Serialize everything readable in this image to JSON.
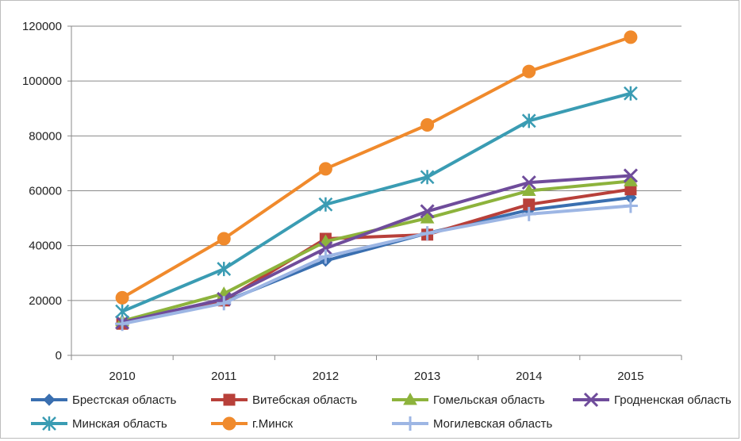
{
  "chart_data": {
    "type": "line",
    "categories": [
      "2010",
      "2011",
      "2012",
      "2013",
      "2014",
      "2015"
    ],
    "ylim": [
      0,
      120000
    ],
    "yticks": [
      "0",
      "20000",
      "40000",
      "60000",
      "80000",
      "100000",
      "120000"
    ],
    "grid": true,
    "legend_position": "bottom",
    "series": [
      {
        "name": "Брестская область",
        "color": "#3a6fb0",
        "marker": "diamond",
        "values": [
          12000,
          19500,
          34500,
          44500,
          53000,
          57500
        ]
      },
      {
        "name": "Витебская область",
        "color": "#b8403a",
        "marker": "square",
        "values": [
          11500,
          20000,
          42500,
          44000,
          55000,
          60500
        ]
      },
      {
        "name": "Гомельская область",
        "color": "#8db33c",
        "marker": "triangle",
        "values": [
          12500,
          22500,
          41500,
          50000,
          60000,
          63500
        ]
      },
      {
        "name": "Гродненская область",
        "color": "#6f4c9b",
        "marker": "x",
        "values": [
          12000,
          20500,
          39000,
          52500,
          63000,
          65500
        ]
      },
      {
        "name": "Минская область",
        "color": "#3a9cb3",
        "marker": "asterisk",
        "values": [
          16000,
          31500,
          55000,
          65000,
          85500,
          95500
        ]
      },
      {
        "name": "г.Минск",
        "color": "#f08a2c",
        "marker": "circle",
        "values": [
          21000,
          42500,
          68000,
          84000,
          103500,
          116000
        ]
      },
      {
        "name": "Могилевская область",
        "color": "#9db6e4",
        "marker": "plus",
        "values": [
          11500,
          19000,
          36000,
          44500,
          51500,
          54500
        ]
      }
    ]
  }
}
